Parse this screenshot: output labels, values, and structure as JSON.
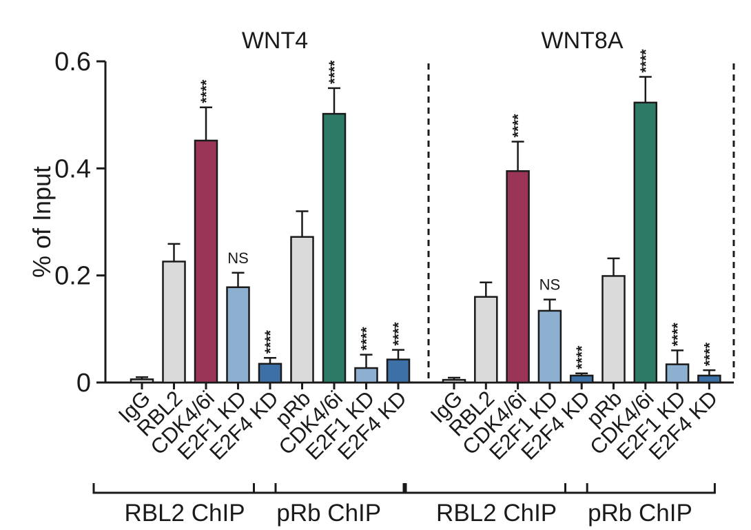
{
  "chart_data": {
    "type": "bar",
    "ylabel": "% of Input",
    "ylim": [
      0,
      0.6
    ],
    "yticks": [
      {
        "value": 0,
        "label": "0"
      },
      {
        "value": 0.2,
        "label": "0.2"
      },
      {
        "value": 0.4,
        "label": "0.4"
      },
      {
        "value": 0.6,
        "label": "0.6"
      }
    ],
    "colors": {
      "control": "#dadada",
      "rbl2_treated": "#9b3558",
      "prb_treated": "#2d7a66",
      "e2f1_kd": "#8eb0d0",
      "e2f4_kd": "#3c70a6",
      "axis": "#1a1a1a"
    },
    "panels": [
      {
        "title": "WNT4",
        "categories": [
          "IgG",
          "RBL2",
          "CDK4/6i",
          "E2F1 KD",
          "E2F4 KD",
          "pRb",
          "CDK4/6i",
          "E2F1 KD",
          "E2F4 KD"
        ],
        "values": [
          0.006,
          0.226,
          0.452,
          0.178,
          0.035,
          0.272,
          0.502,
          0.027,
          0.043
        ],
        "errors": [
          0.004,
          0.033,
          0.062,
          0.027,
          0.011,
          0.048,
          0.048,
          0.025,
          0.018
        ],
        "color_keys": [
          "control",
          "control",
          "rbl2_treated",
          "e2f1_kd",
          "e2f4_kd",
          "control",
          "prb_treated",
          "e2f1_kd",
          "e2f4_kd"
        ],
        "annotations": [
          "",
          "",
          "****",
          "NS",
          "****",
          "",
          "****",
          "****",
          "****"
        ],
        "groups": [
          {
            "label": "RBL2 ChIP",
            "from": 0,
            "to": 4
          },
          {
            "label": "pRb ChIP",
            "from": 5,
            "to": 8
          }
        ]
      },
      {
        "title": "WNT8A",
        "categories": [
          "IgG",
          "RBL2",
          "CDK4/6i",
          "E2F1 KD",
          "E2F4 KD",
          "pRb",
          "CDK4/6i",
          "E2F1 KD",
          "E2F4 KD"
        ],
        "values": [
          0.005,
          0.16,
          0.395,
          0.134,
          0.013,
          0.199,
          0.523,
          0.034,
          0.013
        ],
        "errors": [
          0.004,
          0.027,
          0.055,
          0.021,
          0.004,
          0.033,
          0.048,
          0.026,
          0.01
        ],
        "color_keys": [
          "control",
          "control",
          "rbl2_treated",
          "e2f1_kd",
          "e2f4_kd",
          "control",
          "prb_treated",
          "e2f1_kd",
          "e2f4_kd"
        ],
        "annotations": [
          "",
          "",
          "****",
          "NS",
          "****",
          "",
          "****",
          "****",
          "****"
        ],
        "groups": [
          {
            "label": "RBL2 ChIP",
            "from": 0,
            "to": 4
          },
          {
            "label": "pRb ChIP",
            "from": 5,
            "to": 8
          }
        ]
      }
    ]
  }
}
